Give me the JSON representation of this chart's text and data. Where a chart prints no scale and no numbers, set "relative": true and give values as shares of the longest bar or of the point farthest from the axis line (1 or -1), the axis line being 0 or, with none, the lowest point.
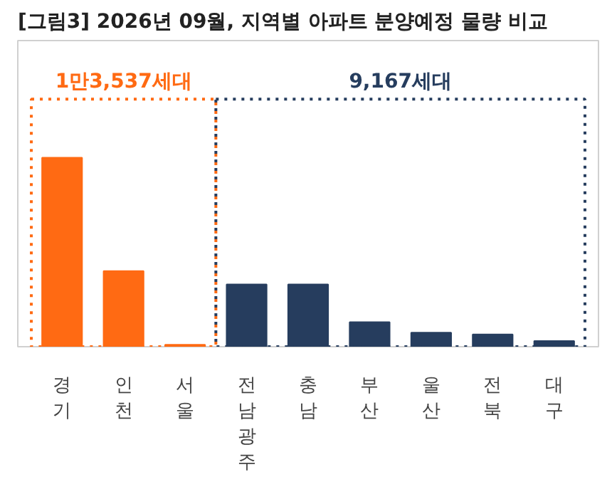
{
  "chart_data": {
    "type": "bar",
    "title": "[그림3] 2026년 09월, 지역별 아파트 분양예정 물량 비교",
    "relative": true,
    "categories": [
      "경기",
      "인천",
      "서울",
      "전남광주",
      "충남",
      "부산",
      "울산",
      "전북",
      "대구"
    ],
    "values": [
      1,
      0.4,
      0.01,
      0.33,
      0.33,
      0.13,
      0.074,
      0.065,
      0.03
    ],
    "colors": [
      "#ff6a13",
      "#ff6a13",
      "#ff6a13",
      "#263d5e",
      "#263d5e",
      "#263d5e",
      "#263d5e",
      "#263d5e",
      "#263d5e"
    ],
    "annotations": [
      "1만3,537세대",
      "9,167세대"
    ],
    "grid": false
  }
}
